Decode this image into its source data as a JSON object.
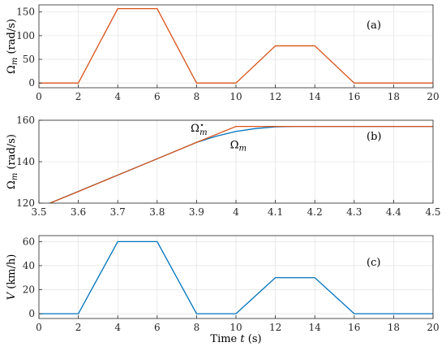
{
  "colors": {
    "series1": "#d95319",
    "series2": "#0072bd",
    "axis": "#262626",
    "grid": "#dcdcdc"
  },
  "chart_data": [
    {
      "type": "line",
      "panel_label": "(a)",
      "ylabel": "Ω_m (rad/s)",
      "xlabel": "",
      "xlim": [
        0,
        20
      ],
      "ylim": [
        -10,
        165
      ],
      "xticks": [
        0,
        2,
        4,
        6,
        8,
        10,
        12,
        14,
        16,
        18,
        20
      ],
      "yticks": [
        0,
        50,
        100,
        150
      ],
      "grid": true,
      "series": [
        {
          "color": "#d95319",
          "x": [
            0,
            2,
            4,
            6,
            8,
            10,
            12,
            14,
            16,
            20
          ],
          "y": [
            0,
            0,
            157,
            157,
            0,
            0,
            78.5,
            78.5,
            0,
            0
          ]
        }
      ]
    },
    {
      "type": "line",
      "panel_label": "(b)",
      "ylabel": "Ω_m (rad/s)",
      "xlabel": "",
      "xlim": [
        3.5,
        4.5
      ],
      "ylim": [
        120,
        160
      ],
      "xticks": [
        3.5,
        3.6,
        3.7,
        3.8,
        3.9,
        4,
        4.1,
        4.2,
        4.3,
        4.4,
        4.5
      ],
      "yticks": [
        120,
        140,
        160
      ],
      "grid": true,
      "annotations": [
        {
          "text": "Ω*_m",
          "x": 3.885,
          "y": 154.5
        },
        {
          "text": "Ω_m",
          "x": 3.985,
          "y": 146.5
        }
      ],
      "series": [
        {
          "name": "Ω_m",
          "color": "#0072bd",
          "x": [
            3.5,
            3.8,
            3.9,
            3.95,
            4.0,
            4.05,
            4.1,
            4.15,
            4.5
          ],
          "y": [
            117.8,
            141.4,
            149.3,
            152.3,
            154.6,
            156.0,
            156.8,
            157,
            157
          ]
        },
        {
          "name": "Ω*_m",
          "color": "#d95319",
          "x": [
            3.5,
            3.6,
            3.7,
            3.8,
            3.9,
            4.0,
            4.5
          ],
          "y": [
            117.8,
            125.6,
            133.5,
            141.4,
            149.3,
            157,
            157
          ]
        }
      ]
    },
    {
      "type": "line",
      "panel_label": "(c)",
      "ylabel": "V (km/h)",
      "xlabel": "Time t (s)",
      "xlim": [
        0,
        20
      ],
      "ylim": [
        -4,
        65
      ],
      "xticks": [
        0,
        2,
        4,
        6,
        8,
        10,
        12,
        14,
        16,
        18,
        20
      ],
      "yticks": [
        0,
        20,
        40,
        60
      ],
      "grid": true,
      "series": [
        {
          "color": "#0072bd",
          "x": [
            0,
            2,
            4,
            6,
            8,
            10,
            12,
            14,
            16,
            20
          ],
          "y": [
            0,
            0,
            60,
            60,
            0,
            0,
            30,
            30,
            0,
            0
          ]
        }
      ]
    }
  ]
}
